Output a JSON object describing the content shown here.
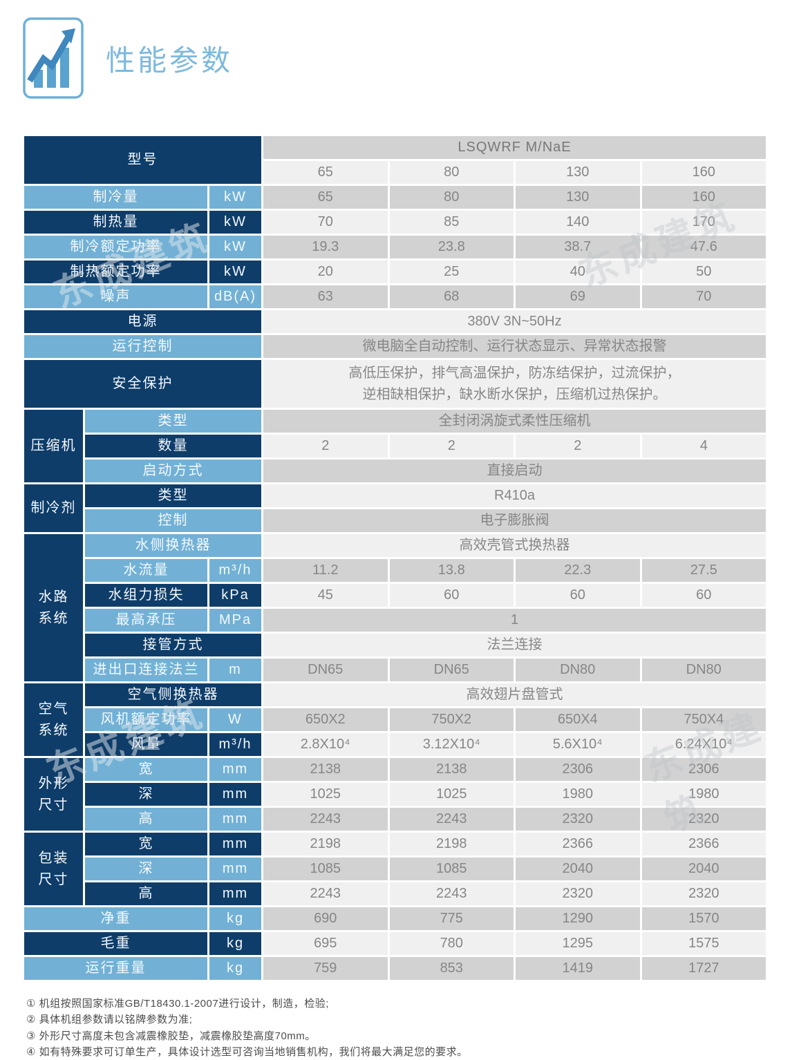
{
  "header": {
    "title": "性能参数",
    "icon": "bar-chart-trend-icon"
  },
  "colors": {
    "dark_blue": "#0f3d69",
    "light_blue": "#72b1d5",
    "row_gray": "#d2d2d2",
    "row_light": "#f0f0f0",
    "title_blue": "#7db9dd",
    "value_text": "#868686"
  },
  "watermark": {
    "text": "东成建筑"
  },
  "table": {
    "model_header": {
      "label": "型号",
      "series": "LSQWRF  M/NaE",
      "models": [
        "65",
        "80",
        "130",
        "160"
      ]
    },
    "rows": [
      {
        "label": "制冷量",
        "unit": "kW",
        "values": [
          "65",
          "80",
          "130",
          "160"
        ],
        "lc": "l",
        "shade": "g"
      },
      {
        "label": "制热量",
        "unit": "kW",
        "values": [
          "70",
          "85",
          "140",
          "170"
        ],
        "lc": "d",
        "shade": "f"
      },
      {
        "label": "制冷额定功率",
        "unit": "kW",
        "values": [
          "19.3",
          "23.8",
          "38.7",
          "47.6"
        ],
        "lc": "l",
        "shade": "g"
      },
      {
        "label": "制热额定功率",
        "unit": "kW",
        "values": [
          "20",
          "25",
          "40",
          "50"
        ],
        "lc": "d",
        "shade": "f"
      },
      {
        "label": "噪声",
        "unit": "dB(A)",
        "values": [
          "63",
          "68",
          "69",
          "70"
        ],
        "lc": "l",
        "shade": "g"
      },
      {
        "label": "电源",
        "value": "380V  3N~50Hz",
        "lc": "d",
        "shade": "f",
        "wide": true
      },
      {
        "label": "运行控制",
        "value": "微电脑全自动控制、运行状态显示、异常状态报警",
        "lc": "l",
        "shade": "g",
        "wide": true
      },
      {
        "label": "安全保护",
        "value": "高低压保护，排气高温保护，防冻结保护，过流保护，\n逆相缺相保护，缺水断水保护，压缩机过热保护。",
        "lc": "d",
        "shade": "f",
        "wide": true,
        "tall": true
      },
      {
        "group": {
          "label": "压缩机",
          "tracks": 3
        },
        "label": "类型",
        "value": "全封闭涡旋式柔性压缩机",
        "lc": "l",
        "shade": "g",
        "grouped": true
      },
      {
        "label": "数量",
        "values": [
          "2",
          "2",
          "2",
          "4"
        ],
        "lc": "d",
        "shade": "f",
        "grouped": true
      },
      {
        "label": "启动方式",
        "value": "直接启动",
        "lc": "l",
        "shade": "g",
        "grouped": true
      },
      {
        "group": {
          "label": "制冷剂",
          "tracks": 2
        },
        "label": "类型",
        "value": "R410a",
        "lc": "d",
        "shade": "f",
        "grouped": true
      },
      {
        "label": "控制",
        "value": "电子膨胀阀",
        "lc": "l",
        "shade": "g",
        "grouped": true
      },
      {
        "group": {
          "label": "水路\n系统",
          "tracks": 6
        },
        "label": "水侧换热器",
        "value": "高效壳管式换热器",
        "lc": "l",
        "shade": "f",
        "grouped": true
      },
      {
        "label": "水流量",
        "unit": "m³/h",
        "values": [
          "11.2",
          "13.8",
          "22.3",
          "27.5"
        ],
        "lc": "l",
        "shade": "g",
        "grouped": true
      },
      {
        "label": "水组力损失",
        "unit": "kPa",
        "values": [
          "45",
          "60",
          "60",
          "60"
        ],
        "lc": "d",
        "shade": "f",
        "grouped": true
      },
      {
        "label": "最高承压",
        "unit": "MPa",
        "value": "1",
        "lc": "l",
        "shade": "g",
        "grouped": true
      },
      {
        "label": "接管方式",
        "value": "法兰连接",
        "lc": "d",
        "shade": "f",
        "grouped": true
      },
      {
        "label": "进出口连接法兰",
        "unit": "m",
        "values": [
          "DN65",
          "DN65",
          "DN80",
          "DN80"
        ],
        "lc": "l",
        "shade": "g",
        "grouped": true
      },
      {
        "group": {
          "label": "空气\n系统",
          "tracks": 3
        },
        "label": "空气侧换热器",
        "value": "高效翅片盘管式",
        "lc": "d",
        "shade": "f",
        "grouped": true
      },
      {
        "label": "风机额定功率",
        "unit": "W",
        "values": [
          "650X2",
          "750X2",
          "650X4",
          "750X4"
        ],
        "lc": "l",
        "shade": "g",
        "grouped": true
      },
      {
        "label": "风量",
        "unit": "m³/h",
        "values": [
          "2.8X10⁴",
          "3.12X10⁴",
          "5.6X10⁴",
          "6.24X10⁴"
        ],
        "lc": "d",
        "shade": "f",
        "grouped": true
      },
      {
        "group": {
          "label": "外形\n尺寸",
          "tracks": 3
        },
        "label": "宽",
        "unit": "mm",
        "values": [
          "2138",
          "2138",
          "2306",
          "2306"
        ],
        "lc": "l",
        "shade": "g",
        "grouped": true
      },
      {
        "label": "深",
        "unit": "mm",
        "values": [
          "1025",
          "1025",
          "1980",
          "1980"
        ],
        "lc": "d",
        "shade": "f",
        "grouped": true
      },
      {
        "label": "高",
        "unit": "mm",
        "values": [
          "2243",
          "2243",
          "2320",
          "2320"
        ],
        "lc": "l",
        "shade": "g",
        "grouped": true
      },
      {
        "group": {
          "label": "包装\n尺寸",
          "tracks": 3
        },
        "label": "宽",
        "unit": "mm",
        "values": [
          "2198",
          "2198",
          "2366",
          "2366"
        ],
        "lc": "d",
        "shade": "f",
        "grouped": true
      },
      {
        "label": "深",
        "unit": "mm",
        "values": [
          "1085",
          "1085",
          "2040",
          "2040"
        ],
        "lc": "l",
        "shade": "g",
        "grouped": true
      },
      {
        "label": "高",
        "unit": "mm",
        "values": [
          "2243",
          "2243",
          "2320",
          "2320"
        ],
        "lc": "d",
        "shade": "f",
        "grouped": true
      },
      {
        "label": "净重",
        "unit": "kg",
        "values": [
          "690",
          "775",
          "1290",
          "1570"
        ],
        "lc": "l",
        "shade": "g"
      },
      {
        "label": "毛重",
        "unit": "kg",
        "values": [
          "695",
          "780",
          "1295",
          "1575"
        ],
        "lc": "d",
        "shade": "f"
      },
      {
        "label": "运行重量",
        "unit": "kg",
        "values": [
          "759",
          "853",
          "1419",
          "1727"
        ],
        "lc": "l",
        "shade": "g"
      }
    ]
  },
  "footnotes": [
    "① 机组按照国家标准GB/T18430.1-2007进行设计，制造，检验;",
    "② 具体机组参数请以铭牌参数为准;",
    "③ 外形尺寸高度未包含减震橡胶垫，减震橡胶垫高度70mm。",
    "④ 如有特殊要求可订单生产，具体设计选型可咨询当地销售机构，我们将最大满足您的要求。"
  ]
}
